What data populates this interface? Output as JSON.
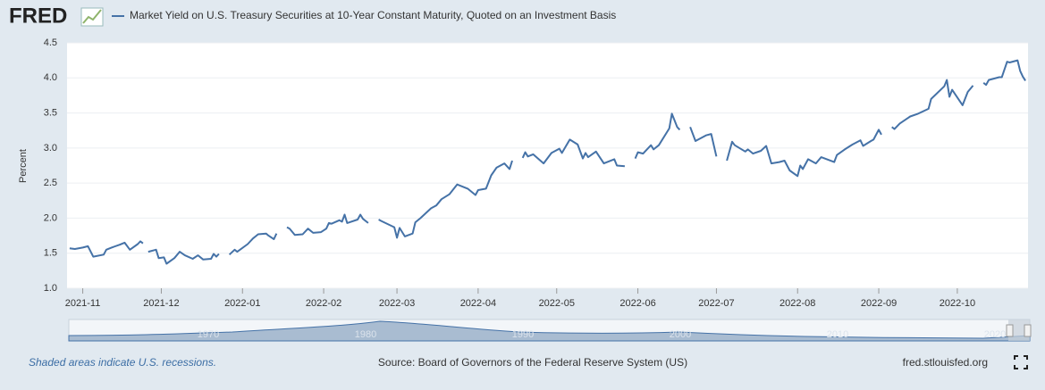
{
  "brand": "FRED",
  "chart_data": {
    "type": "line",
    "y_label": "Percent",
    "xlim": [
      "2021-10-26",
      "2022-10-28"
    ],
    "xticks": [
      {
        "value": "2021-11-01",
        "label": "2021-11"
      },
      {
        "value": "2021-12-01",
        "label": "2021-12"
      },
      {
        "value": "2022-01-01",
        "label": "2022-01"
      },
      {
        "value": "2022-02-01",
        "label": "2022-02"
      },
      {
        "value": "2022-03-01",
        "label": "2022-03"
      },
      {
        "value": "2022-04-01",
        "label": "2022-04"
      },
      {
        "value": "2022-05-01",
        "label": "2022-05"
      },
      {
        "value": "2022-06-01",
        "label": "2022-06"
      },
      {
        "value": "2022-07-01",
        "label": "2022-07"
      },
      {
        "value": "2022-08-01",
        "label": "2022-08"
      },
      {
        "value": "2022-09-01",
        "label": "2022-09"
      },
      {
        "value": "2022-10-01",
        "label": "2022-10"
      }
    ],
    "ylim": [
      1,
      4.5
    ],
    "yticks": [
      {
        "value": 1,
        "label": "1.0"
      },
      {
        "value": 1.5,
        "label": "1.5"
      },
      {
        "value": 2,
        "label": "2.0"
      },
      {
        "value": 2.5,
        "label": "2.5"
      },
      {
        "value": 3,
        "label": "3.0"
      },
      {
        "value": 3.5,
        "label": "3.5"
      },
      {
        "value": 4,
        "label": "4.0"
      },
      {
        "value": 4.5,
        "label": "4.5"
      }
    ],
    "grid": true,
    "x": [
      "2021-10-27",
      "2021-10-29",
      "2021-11-01",
      "2021-11-03",
      "2021-11-05",
      "2021-11-09",
      "2021-11-10",
      "2021-11-12",
      "2021-11-15",
      "2021-11-17",
      "2021-11-19",
      "2021-11-22",
      "2021-11-23",
      "2021-11-24",
      "2021-11-25",
      "2021-11-26",
      "2021-11-29",
      "2021-11-30",
      "2021-12-02",
      "2021-12-03",
      "2021-12-06",
      "2021-12-08",
      "2021-12-10",
      "2021-12-13",
      "2021-12-15",
      "2021-12-17",
      "2021-12-20",
      "2021-12-21",
      "2021-12-22",
      "2021-12-23",
      "2021-12-24",
      "2021-12-27",
      "2021-12-29",
      "2021-12-30",
      "2022-01-03",
      "2022-01-05",
      "2022-01-07",
      "2022-01-10",
      "2022-01-11",
      "2022-01-13",
      "2022-01-14",
      "2022-01-17",
      "2022-01-18",
      "2022-01-19",
      "2022-01-21",
      "2022-01-24",
      "2022-01-26",
      "2022-01-28",
      "2022-01-31",
      "2022-02-02",
      "2022-02-03",
      "2022-02-04",
      "2022-02-07",
      "2022-02-08",
      "2022-02-09",
      "2022-02-10",
      "2022-02-14",
      "2022-02-15",
      "2022-02-16",
      "2022-02-18",
      "2022-02-21",
      "2022-02-22",
      "2022-02-23",
      "2022-02-28",
      "2022-03-01",
      "2022-03-02",
      "2022-03-04",
      "2022-03-07",
      "2022-03-08",
      "2022-03-10",
      "2022-03-14",
      "2022-03-16",
      "2022-03-18",
      "2022-03-21",
      "2022-03-24",
      "2022-03-28",
      "2022-03-31",
      "2022-04-01",
      "2022-04-04",
      "2022-04-06",
      "2022-04-08",
      "2022-04-11",
      "2022-04-13",
      "2022-04-14",
      "2022-04-15",
      "2022-04-18",
      "2022-04-19",
      "2022-04-20",
      "2022-04-22",
      "2022-04-26",
      "2022-04-29",
      "2022-05-02",
      "2022-05-03",
      "2022-05-06",
      "2022-05-09",
      "2022-05-11",
      "2022-05-12",
      "2022-05-13",
      "2022-05-16",
      "2022-05-19",
      "2022-05-23",
      "2022-05-24",
      "2022-05-27",
      "2022-05-30",
      "2022-05-31",
      "2022-06-01",
      "2022-06-03",
      "2022-06-06",
      "2022-06-07",
      "2022-06-09",
      "2022-06-13",
      "2022-06-14",
      "2022-06-16",
      "2022-06-17",
      "2022-06-20",
      "2022-06-21",
      "2022-06-23",
      "2022-06-27",
      "2022-06-29",
      "2022-07-01",
      "2022-07-04",
      "2022-07-05",
      "2022-07-07",
      "2022-07-08",
      "2022-07-12",
      "2022-07-13",
      "2022-07-15",
      "2022-07-18",
      "2022-07-20",
      "2022-07-22",
      "2022-07-25",
      "2022-07-27",
      "2022-07-29",
      "2022-08-01",
      "2022-08-02",
      "2022-08-03",
      "2022-08-05",
      "2022-08-08",
      "2022-08-10",
      "2022-08-15",
      "2022-08-16",
      "2022-08-19",
      "2022-08-22",
      "2022-08-25",
      "2022-08-26",
      "2022-08-29",
      "2022-08-30",
      "2022-09-01",
      "2022-09-02",
      "2022-09-05",
      "2022-09-06",
      "2022-09-07",
      "2022-09-09",
      "2022-09-13",
      "2022-09-16",
      "2022-09-20",
      "2022-09-21",
      "2022-09-26",
      "2022-09-27",
      "2022-09-28",
      "2022-09-29",
      "2022-10-03",
      "2022-10-05",
      "2022-10-07",
      "2022-10-10",
      "2022-10-11",
      "2022-10-12",
      "2022-10-13",
      "2022-10-17",
      "2022-10-18",
      "2022-10-20",
      "2022-10-21",
      "2022-10-24",
      "2022-10-25",
      "2022-10-26",
      "2022-10-27"
    ],
    "series": [
      {
        "name": "Market Yield on U.S. Treasury Securities at 10-Year Constant Maturity, Quoted on an Investment Basis",
        "color": "#4572a7",
        "values": [
          1.57,
          1.56,
          1.58,
          1.6,
          1.45,
          1.48,
          1.55,
          1.58,
          1.62,
          1.65,
          1.55,
          1.63,
          1.67,
          1.64,
          null,
          1.52,
          1.55,
          1.43,
          1.44,
          1.35,
          1.43,
          1.52,
          1.47,
          1.42,
          1.47,
          1.41,
          1.42,
          1.49,
          1.45,
          1.49,
          null,
          1.48,
          1.55,
          1.52,
          1.63,
          1.71,
          1.77,
          1.78,
          1.75,
          1.7,
          1.78,
          null,
          1.87,
          1.85,
          1.76,
          1.77,
          1.85,
          1.79,
          1.8,
          1.85,
          1.93,
          1.92,
          1.97,
          1.95,
          2.05,
          1.93,
          1.98,
          2.05,
          1.99,
          1.93,
          null,
          1.98,
          1.96,
          1.87,
          1.72,
          1.86,
          1.74,
          1.78,
          1.94,
          2.0,
          2.14,
          2.18,
          2.27,
          2.34,
          2.48,
          2.42,
          2.33,
          2.4,
          2.42,
          2.61,
          2.72,
          2.78,
          2.7,
          2.82,
          null,
          2.86,
          2.94,
          2.88,
          2.91,
          2.78,
          2.93,
          2.99,
          2.93,
          3.12,
          3.05,
          2.85,
          2.93,
          2.87,
          2.95,
          2.78,
          2.84,
          2.75,
          2.74,
          null,
          2.85,
          2.94,
          2.92,
          3.04,
          2.98,
          3.04,
          3.28,
          3.49,
          3.3,
          3.26,
          null,
          3.3,
          3.1,
          3.18,
          3.2,
          2.88,
          null,
          2.82,
          3.09,
          3.04,
          2.95,
          2.98,
          2.92,
          2.96,
          3.03,
          2.78,
          2.8,
          2.82,
          2.68,
          2.6,
          2.75,
          2.7,
          2.84,
          2.78,
          2.87,
          2.8,
          2.9,
          2.98,
          3.05,
          3.11,
          3.03,
          3.1,
          3.12,
          3.26,
          3.19,
          null,
          3.3,
          3.27,
          3.35,
          3.45,
          3.49,
          3.56,
          3.7,
          3.88,
          3.97,
          3.73,
          3.83,
          3.61,
          3.8,
          3.89,
          null,
          3.93,
          3.9,
          3.97,
          4.01,
          4.01,
          4.23,
          4.22,
          4.25,
          4.1,
          4.02,
          3.96
        ]
      }
    ]
  },
  "navigator": {
    "labels": [
      "1970",
      "1980",
      "1990",
      "2000",
      "2010",
      "2020"
    ]
  },
  "footer": {
    "note": "Shaded areas indicate U.S. recessions.",
    "source": "Source: Board of Governors of the Federal Reserve System (US)",
    "site": "fred.stlouisfed.org"
  }
}
